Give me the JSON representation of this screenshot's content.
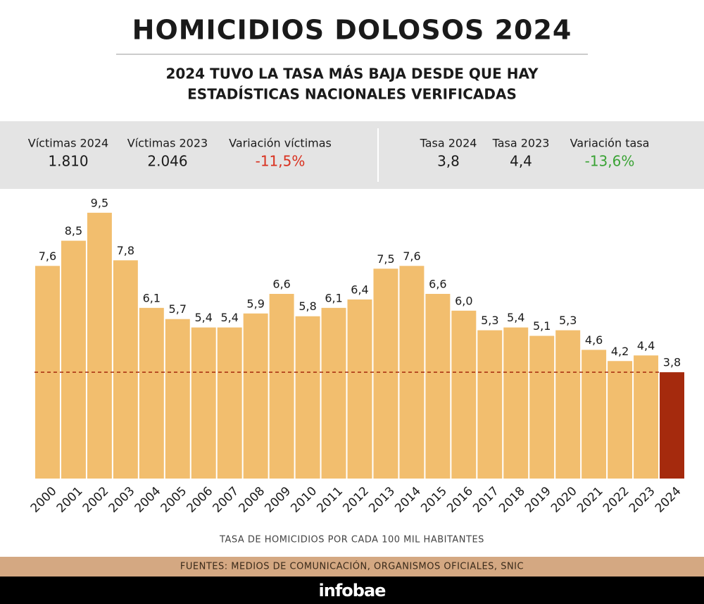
{
  "header": {
    "title": "HOMICIDIOS DOLOSOS 2024",
    "subtitle_lines": [
      "2024 TUVO LA TASA MÁS BAJA DESDE QUE HAY",
      "ESTADÍSTICAS NACIONALES VERIFICADAS"
    ]
  },
  "stats": [
    {
      "label": "Víctimas 2024",
      "value": "1.810"
    },
    {
      "label": "Víctimas 2023",
      "value": "2.046"
    },
    {
      "label": "Variación víctimas",
      "value": "-11,5%"
    },
    {
      "label": "Tasa 2024",
      "value": "3,8"
    },
    {
      "label": "Tasa 2023",
      "value": "4,4"
    },
    {
      "label": "Variación tasa",
      "value": "-13,6%"
    }
  ],
  "chart_data": {
    "type": "bar",
    "x_label": "TASA DE HOMICIDIOS POR CADA 100 MIL HABITANTES",
    "categories": [
      "2000",
      "2001",
      "2002",
      "2003",
      "2004",
      "2005",
      "2006",
      "2007",
      "2008",
      "2009",
      "2010",
      "2011",
      "2012",
      "2013",
      "2014",
      "2015",
      "2016",
      "2017",
      "2018",
      "2019",
      "2020",
      "2021",
      "2022",
      "2023",
      "2024"
    ],
    "values": [
      7.6,
      8.5,
      9.5,
      7.8,
      6.1,
      5.7,
      5.4,
      5.4,
      5.9,
      6.6,
      5.8,
      6.1,
      6.4,
      7.5,
      7.6,
      6.6,
      6.0,
      5.3,
      5.4,
      5.1,
      5.3,
      4.6,
      4.2,
      4.4,
      3.8
    ],
    "value_labels": [
      "7,6",
      "8,5",
      "9,5",
      "7,8",
      "6,1",
      "5,7",
      "5,4",
      "5,4",
      "5,9",
      "6,6",
      "5,8",
      "6,1",
      "6,4",
      "7,5",
      "7,6",
      "6,6",
      "6,0",
      "5,3",
      "5,4",
      "5,1",
      "5,3",
      "4,6",
      "4,2",
      "4,4",
      "3,8"
    ],
    "color": "#f2be6e",
    "highlight_color": "#a52a0d",
    "highlight_index": 24,
    "reference_line": 3.8,
    "ylim": [
      0,
      10
    ]
  },
  "footer": {
    "sources": "FUENTES: MEDIOS DE COMUNICACIÓN, ORGANISMOS OFICIALES, SNIC",
    "brand": "infobae"
  }
}
